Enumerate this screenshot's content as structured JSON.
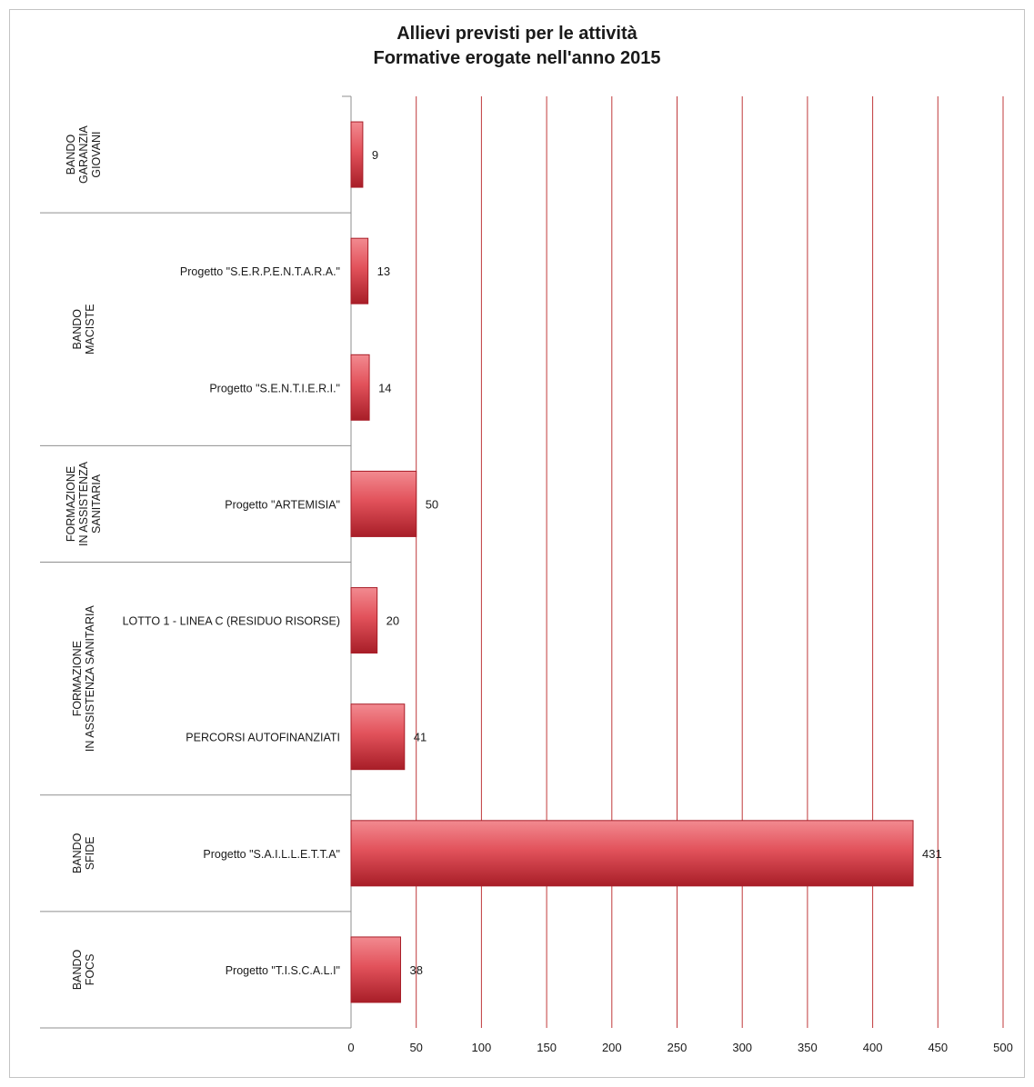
{
  "chart_data": {
    "type": "bar",
    "orientation": "horizontal",
    "title": [
      "Allievi previsti per le attività",
      "Formative erogate nell'anno 2015"
    ],
    "groups": [
      {
        "label": [
          "BANDO",
          "GARANZIA",
          "GIOVANI"
        ],
        "items": [
          {
            "category": "",
            "value": 9
          }
        ]
      },
      {
        "label": [
          "BANDO",
          "MACISTE"
        ],
        "items": [
          {
            "category": "Progetto  \"S.E.R.P.E.N.T.A.R.A.\"",
            "value": 13
          },
          {
            "category": "Progetto  \"S.E.N.T.I.E.R.I.\"",
            "value": 14
          }
        ]
      },
      {
        "label": [
          "FORMAZIONE",
          "IN ASSISTENZA",
          "SANITARIA"
        ],
        "items": [
          {
            "category": "Progetto  \"ARTEMISIA\"",
            "value": 50
          }
        ]
      },
      {
        "label": [
          "FORMAZIONE",
          "IN ASSISTENZA SANITARIA"
        ],
        "items": [
          {
            "category": "LOTTO 1 - LINEA C (RESIDUO RISORSE)",
            "value": 20
          },
          {
            "category": "PERCORSI AUTOFINANZIATI",
            "value": 41
          }
        ]
      },
      {
        "label": [
          "BANDO",
          "SFIDE"
        ],
        "items": [
          {
            "category": "Progetto  \"S.A.I.L.L.E.T.T.A\"",
            "value": 431
          }
        ]
      },
      {
        "label": [
          "BANDO",
          "FOCS"
        ],
        "items": [
          {
            "category": "Progetto  \"T.I.S.C.A.L.I\"",
            "value": 38
          }
        ]
      }
    ],
    "xlim": [
      0,
      500
    ],
    "xticks": [
      "0",
      "50",
      "100",
      "150",
      "200",
      "250",
      "300",
      "350",
      "400",
      "450",
      "500"
    ],
    "xlabel": "",
    "ylabel": "",
    "grid": "vertical",
    "legend": "none",
    "colors": {
      "bar": "#e2525b",
      "bar_light": "#f28a90",
      "bar_dark": "#a81e28",
      "grid": "#c0393b",
      "axis": "#8f8f8f"
    }
  }
}
